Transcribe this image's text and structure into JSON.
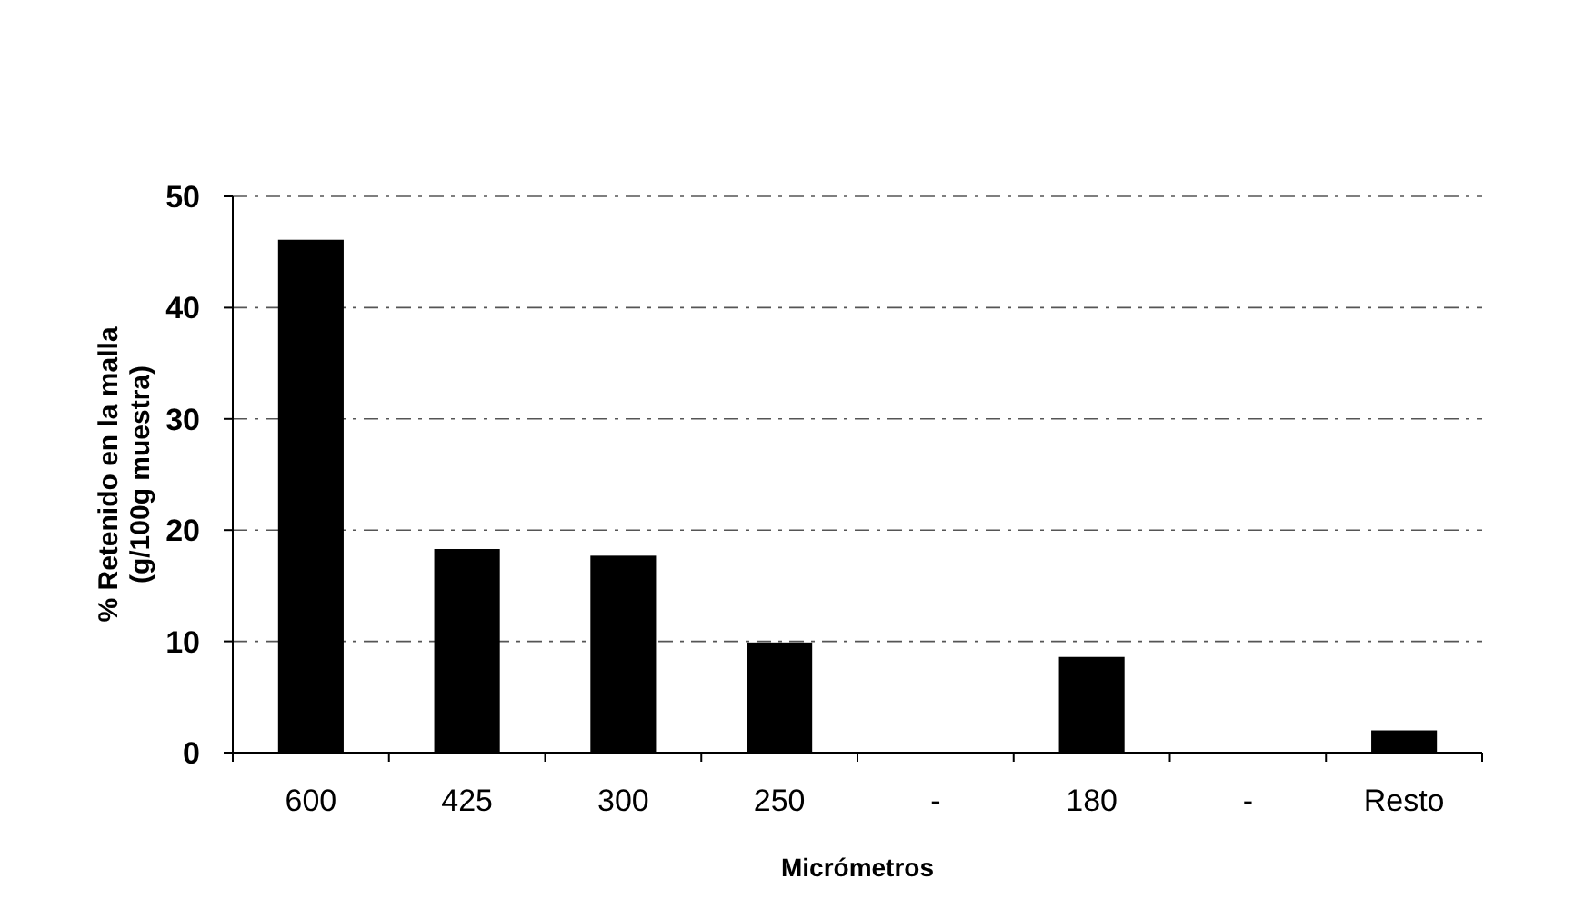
{
  "chart_data": {
    "type": "bar",
    "xlabel": "Micrómetros",
    "ylabel": "% Retenido en la malla (g/100g muestra)",
    "categories": [
      "600",
      "425",
      "300",
      "250",
      "-",
      "180",
      "-",
      "Resto"
    ],
    "values": [
      46.1,
      18.3,
      17.7,
      9.9,
      null,
      8.6,
      null,
      2.0
    ],
    "color": "#000000",
    "ylim": [
      0,
      50
    ],
    "yticks": [
      0,
      10,
      20,
      30,
      40,
      50
    ],
    "grid": "y"
  }
}
